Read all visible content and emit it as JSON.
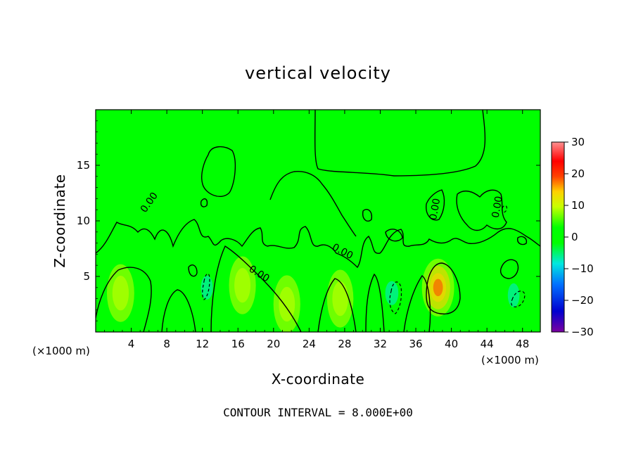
{
  "chart_data": {
    "type": "heatmap",
    "title": "vertical velocity",
    "xlabel": "X-coordinate",
    "ylabel": "Z-coordinate",
    "x_unit_label": "(×1000 m)",
    "x_unit_label_right": "(×1000 m)",
    "xlim": [
      0,
      50
    ],
    "ylim": [
      0,
      20
    ],
    "xticks": [
      4,
      8,
      12,
      16,
      20,
      24,
      28,
      32,
      36,
      40,
      44,
      48
    ],
    "yticks": [
      5,
      10,
      15
    ],
    "colorbar": {
      "range": [
        -30,
        30
      ],
      "ticks": [
        30,
        20,
        10,
        0,
        -10,
        -20,
        -30
      ],
      "tick_labels": [
        "30",
        "20",
        "10",
        "0",
        "−10",
        "−20",
        "−30"
      ],
      "colors": [
        "#7a00a0",
        "#0000d0",
        "#0070ff",
        "#00e8e0",
        "#00ff00",
        "#c8ff00",
        "#ffd000",
        "#ff4000",
        "#ff0000",
        "#ff9090"
      ]
    },
    "contour_interval": "CONTOUR INTERVAL = 8.000E+00",
    "contour_labels": [
      {
        "text": "0.00",
        "x": 6.3,
        "z": 11.5,
        "angle": -55
      },
      {
        "text": "0.00",
        "x": 18.2,
        "z": 5.0,
        "angle": 32
      },
      {
        "text": "0.00",
        "x": 27.6,
        "z": 7.0,
        "angle": 28
      },
      {
        "text": "0.00",
        "x": 38.5,
        "z": 11.0,
        "angle": -80
      },
      {
        "text": "0.00",
        "x": 45.5,
        "z": 11.2,
        "angle": -80
      }
    ],
    "background_value": 0,
    "features": [
      {
        "kind": "updraft",
        "x": 38.5,
        "z": 4.0,
        "peak": 15
      },
      {
        "kind": "updraft",
        "x": 2.8,
        "z": 3.5,
        "peak": 5
      },
      {
        "kind": "updraft",
        "x": 16.5,
        "z": 4.2,
        "peak": 4
      },
      {
        "kind": "updraft",
        "x": 21.5,
        "z": 2.5,
        "peak": 4
      },
      {
        "kind": "updraft",
        "x": 27.5,
        "z": 3.0,
        "peak": 3
      },
      {
        "kind": "downdraft",
        "x": 12.5,
        "z": 4.0,
        "peak": -8
      },
      {
        "kind": "downdraft",
        "x": 33.3,
        "z": 3.5,
        "peak": -12
      },
      {
        "kind": "downdraft",
        "x": 47.0,
        "z": 3.3,
        "peak": -7
      },
      {
        "kind": "downdraft",
        "x": 43.5,
        "z": 4.0,
        "peak": -4
      },
      {
        "kind": "downdraft",
        "x": 24.5,
        "z": 4.0,
        "peak": -3
      }
    ]
  }
}
